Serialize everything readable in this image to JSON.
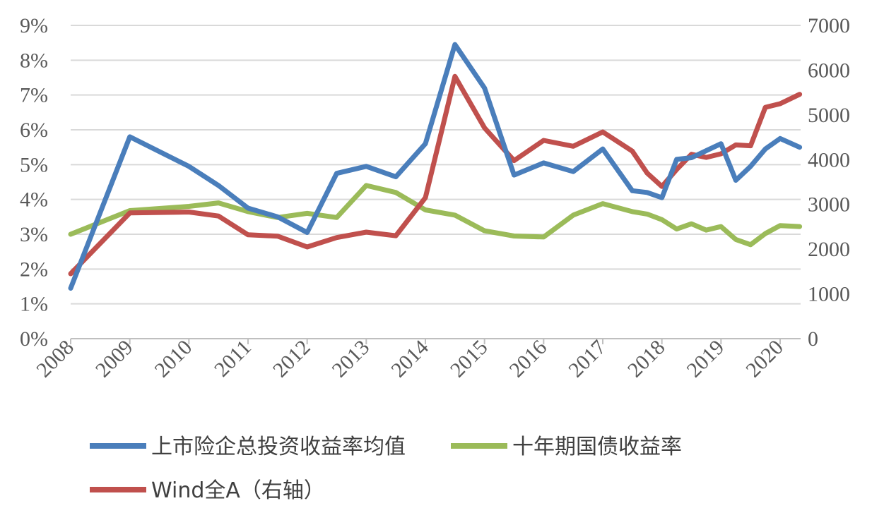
{
  "chart_data": {
    "type": "line",
    "x_ticks": [
      "2008",
      "2009",
      "2010",
      "2011",
      "2012",
      "2013",
      "2014",
      "2015",
      "2016",
      "2017",
      "2018",
      "2019",
      "2020"
    ],
    "y_left": {
      "ticks": [
        "0%",
        "1%",
        "2%",
        "3%",
        "4%",
        "5%",
        "6%",
        "7%",
        "8%",
        "9%"
      ],
      "lim": [
        0,
        9
      ]
    },
    "y_right": {
      "ticks": [
        "0",
        "1000",
        "2000",
        "3000",
        "4000",
        "5000",
        "6000",
        "7000"
      ],
      "lim": [
        0,
        7000
      ]
    },
    "x_lim": [
      2008,
      2020.33
    ],
    "grid": true,
    "legend_position": "bottom",
    "series": [
      {
        "name": "上市险企总投资收益率均值",
        "axis": "left",
        "color": "#4a7ebb",
        "x": [
          2008,
          2009,
          2010,
          2010.5,
          2011,
          2011.5,
          2012,
          2012.5,
          2013,
          2013.5,
          2014,
          2014.5,
          2015,
          2015.5,
          2016,
          2016.5,
          2017,
          2017.5,
          2017.75,
          2018,
          2018.25,
          2018.5,
          2018.75,
          2019,
          2019.25,
          2019.5,
          2019.75,
          2020,
          2020.33
        ],
        "y": [
          1.45,
          5.8,
          4.95,
          4.4,
          3.75,
          3.5,
          3.05,
          4.75,
          4.95,
          4.65,
          5.6,
          8.45,
          7.2,
          4.7,
          5.05,
          4.8,
          5.45,
          4.25,
          4.2,
          4.05,
          5.15,
          5.2,
          5.4,
          5.6,
          4.55,
          4.95,
          5.45,
          5.75,
          5.5
        ]
      },
      {
        "name": "十年期国债收益率",
        "axis": "left",
        "color": "#9bbb59",
        "x": [
          2008,
          2009,
          2010,
          2010.5,
          2011,
          2011.5,
          2012,
          2012.5,
          2013,
          2013.5,
          2014,
          2014.5,
          2015,
          2015.5,
          2016,
          2016.5,
          2017,
          2017.5,
          2017.75,
          2018,
          2018.25,
          2018.5,
          2018.75,
          2019,
          2019.25,
          2019.5,
          2019.75,
          2020,
          2020.33
        ],
        "y": [
          3.0,
          3.68,
          3.8,
          3.9,
          3.65,
          3.48,
          3.6,
          3.48,
          4.4,
          4.2,
          3.7,
          3.55,
          3.1,
          2.95,
          2.92,
          3.55,
          3.88,
          3.65,
          3.58,
          3.42,
          3.15,
          3.3,
          3.12,
          3.22,
          2.85,
          2.7,
          3.02,
          3.25,
          3.22
        ]
      },
      {
        "name": "Wind全A（右轴）",
        "axis": "right",
        "color": "#c0504d",
        "x": [
          2008,
          2009,
          2010,
          2010.5,
          2011,
          2011.5,
          2012,
          2012.5,
          2013,
          2013.5,
          2014,
          2014.5,
          2015,
          2015.5,
          2016,
          2016.5,
          2017,
          2017.5,
          2017.75,
          2018,
          2018.25,
          2018.5,
          2018.75,
          2019,
          2019.25,
          2019.5,
          2019.75,
          2020,
          2020.33
        ],
        "y": [
          1450,
          2810,
          2830,
          2740,
          2320,
          2290,
          2050,
          2260,
          2380,
          2300,
          3150,
          5860,
          4710,
          3980,
          4430,
          4300,
          4620,
          4190,
          3700,
          3400,
          3780,
          4120,
          4050,
          4130,
          4330,
          4310,
          5170,
          5250,
          5460
        ]
      }
    ]
  }
}
